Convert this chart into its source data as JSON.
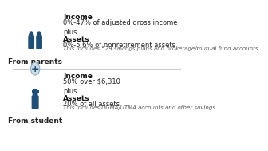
{
  "bg_color": "#ffffff",
  "divider_color": "#cccccc",
  "icon_color": "#1f4e79",
  "circle_color": "#d0dce8",
  "circle_border": "#8eafc4",
  "text_color": "#222222",
  "italic_color": "#555555",
  "bold_color": "#111111",
  "section1": {
    "label": "From parents",
    "income_title": "Income",
    "income_line": "0%-47% of adjusted gross income",
    "plus": "plus",
    "assets_title": "Assets",
    "assets_line": "0%-5.6% of nonretirement assets",
    "assets_italic": "This includes 529 savings plans and brokerage/mutual fund accounts."
  },
  "section2": {
    "label": "From student",
    "income_title": "Income",
    "income_line": "50% over $6,310",
    "plus": "plus",
    "assets_title": "Assets",
    "assets_line": "20% of all assets",
    "assets_italic": "This includes UGMA/UTMA accounts and other savings."
  }
}
